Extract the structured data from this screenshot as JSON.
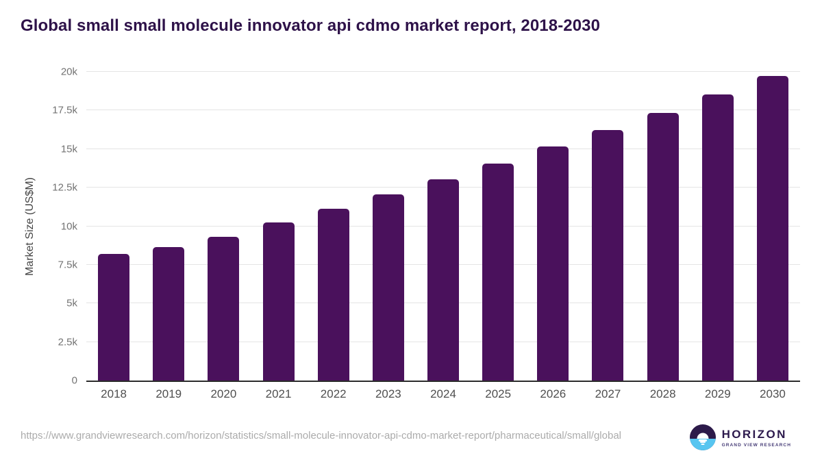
{
  "page": {
    "title": "Global small small molecule innovator api cdmo market report, 2018-2030",
    "source_url": "https://www.grandviewresearch.com/horizon/statistics/small-molecule-innovator-api-cdmo-market-report/pharmaceutical/small/global",
    "logo": {
      "icon": "horizon-sunset-circle-icon",
      "brand": "HORIZON",
      "sub_brand": "GRAND VIEW RESEARCH"
    }
  },
  "chart_data": {
    "type": "bar",
    "title": "Global small small molecule innovator api cdmo market report, 2018-2030",
    "categories": [
      "2018",
      "2019",
      "2020",
      "2021",
      "2022",
      "2023",
      "2024",
      "2025",
      "2026",
      "2027",
      "2028",
      "2029",
      "2030"
    ],
    "values": [
      8200,
      8650,
      9320,
      10250,
      11130,
      12060,
      13040,
      14080,
      15150,
      16250,
      17360,
      18540,
      19740
    ],
    "series": [
      {
        "name": "Market Size",
        "values": [
          8200,
          8650,
          9320,
          10250,
          11130,
          12060,
          13040,
          14080,
          15150,
          16250,
          17360,
          18540,
          19740
        ]
      }
    ],
    "xlabel": "",
    "ylabel": "Market Size (US$M)",
    "ylim": [
      0,
      20000
    ],
    "yticks": {
      "values": [
        0,
        2500,
        5000,
        7500,
        10000,
        12500,
        15000,
        17500,
        20000
      ],
      "labels": [
        "0",
        "2.5k",
        "5k",
        "7.5k",
        "10k",
        "12.5k",
        "15k",
        "17.5k",
        "20k"
      ]
    },
    "grid": "horizontal",
    "legend": "none",
    "colors": {
      "bar": "#4a115c",
      "title": "#2e1249",
      "gridline": "#e4e4e4",
      "axis_line": "#2b2b2b",
      "tick_label": "#737373"
    }
  }
}
